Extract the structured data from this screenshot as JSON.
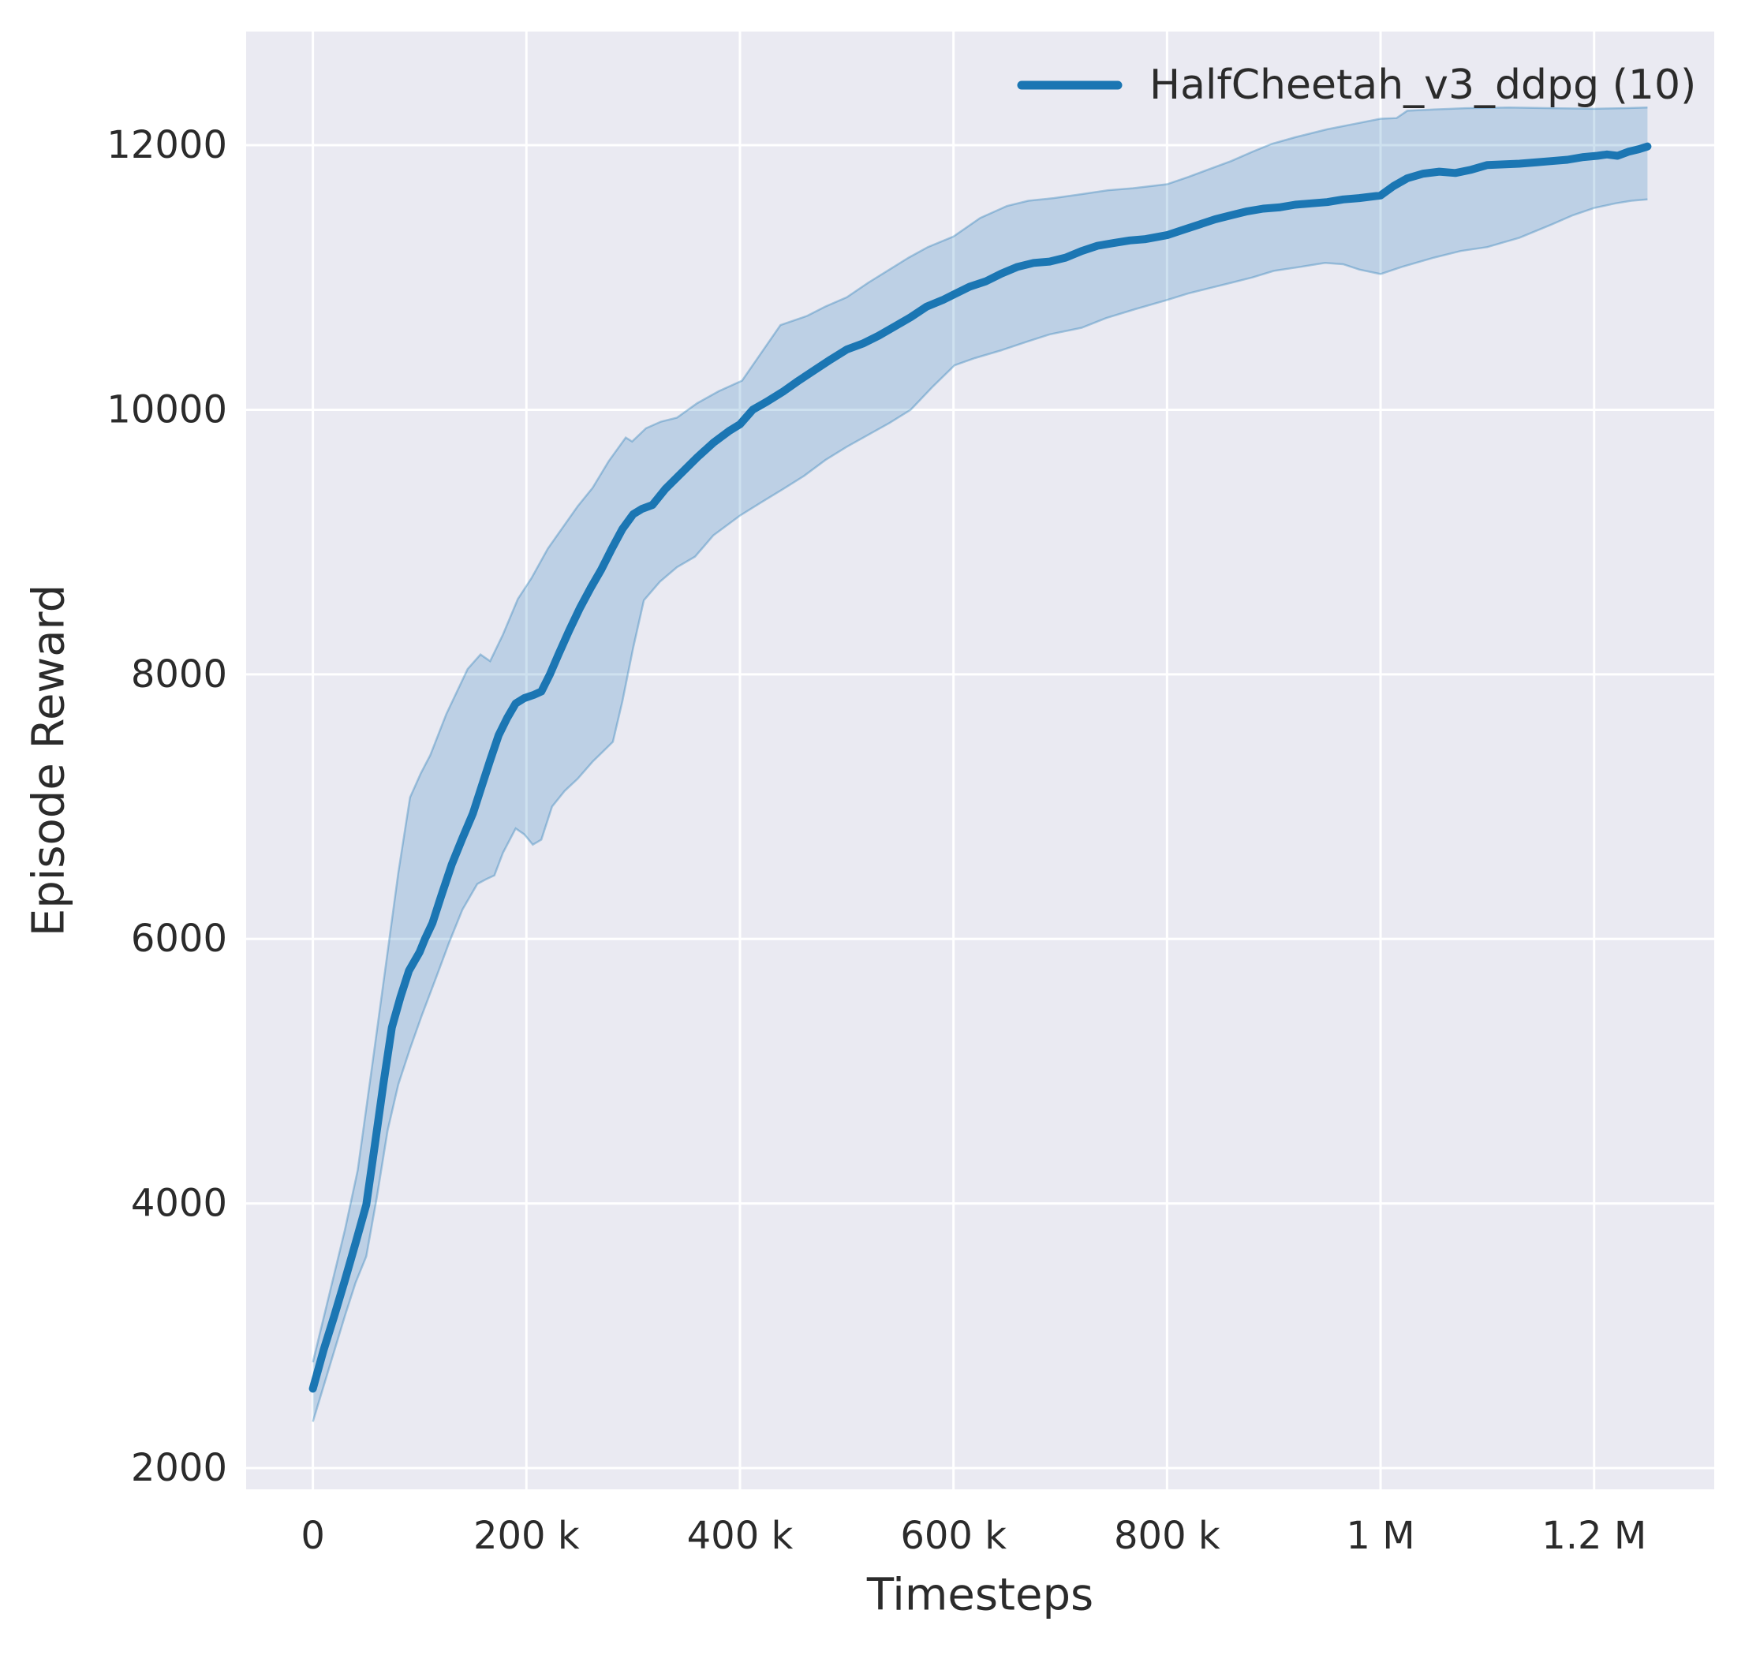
{
  "figure": {
    "background": "#ffffff",
    "axes_background": "#eaeaf2",
    "grid_color": "#ffffff",
    "text_color": "#2b2b2b"
  },
  "legend": {
    "label": "HalfCheetah_v3_ddpg (10)",
    "swatch_color": "#1b76b3"
  },
  "chart_data": {
    "type": "line",
    "title": "",
    "xlabel": "Timesteps",
    "ylabel": "Episode Reward",
    "grid": true,
    "legend_position": "upper right",
    "xlim": [
      -62500,
      1312500
    ],
    "ylim": [
      1839,
      12859
    ],
    "x_ticks": [
      {
        "v": 0,
        "label": "0"
      },
      {
        "v": 200000,
        "label": "200 k"
      },
      {
        "v": 400000,
        "label": "400 k"
      },
      {
        "v": 600000,
        "label": "600 k"
      },
      {
        "v": 800000,
        "label": "800 k"
      },
      {
        "v": 1000000,
        "label": "1 M"
      },
      {
        "v": 1200000,
        "label": "1.2 M"
      }
    ],
    "y_ticks": [
      {
        "v": 2000,
        "label": "2000"
      },
      {
        "v": 4000,
        "label": "4000"
      },
      {
        "v": 6000,
        "label": "6000"
      },
      {
        "v": 8000,
        "label": "8000"
      },
      {
        "v": 10000,
        "label": "10000"
      },
      {
        "v": 12000,
        "label": "12000"
      }
    ],
    "series": [
      {
        "name": "HalfCheetah_v3_ddpg (10)",
        "color": "#1b76b3",
        "band_fill": "rgba(31,119,180,0.22)",
        "band_edge": "rgba(31,119,180,0.35)",
        "mean": [
          [
            0,
            2600
          ],
          [
            10000,
            2890
          ],
          [
            20000,
            3150
          ],
          [
            30000,
            3420
          ],
          [
            40000,
            3700
          ],
          [
            50000,
            3990
          ],
          [
            58000,
            4440
          ],
          [
            66000,
            4900
          ],
          [
            74000,
            5330
          ],
          [
            82000,
            5560
          ],
          [
            90000,
            5760
          ],
          [
            100000,
            5900
          ],
          [
            105000,
            6000
          ],
          [
            112000,
            6120
          ],
          [
            120000,
            6320
          ],
          [
            130000,
            6560
          ],
          [
            140000,
            6760
          ],
          [
            150000,
            6950
          ],
          [
            158000,
            7150
          ],
          [
            166000,
            7350
          ],
          [
            174000,
            7540
          ],
          [
            182000,
            7670
          ],
          [
            190000,
            7780
          ],
          [
            198000,
            7820
          ],
          [
            207000,
            7845
          ],
          [
            214000,
            7870
          ],
          [
            222000,
            8000
          ],
          [
            230000,
            8150
          ],
          [
            240000,
            8330
          ],
          [
            250000,
            8500
          ],
          [
            260000,
            8650
          ],
          [
            270000,
            8790
          ],
          [
            280000,
            8950
          ],
          [
            290000,
            9100
          ],
          [
            300000,
            9210
          ],
          [
            308000,
            9250
          ],
          [
            318000,
            9280
          ],
          [
            330000,
            9400
          ],
          [
            340000,
            9480
          ],
          [
            350000,
            9560
          ],
          [
            360000,
            9640
          ],
          [
            375000,
            9750
          ],
          [
            390000,
            9840
          ],
          [
            400000,
            9890
          ],
          [
            412000,
            10000
          ],
          [
            425000,
            10060
          ],
          [
            440000,
            10135
          ],
          [
            455000,
            10220
          ],
          [
            470000,
            10300
          ],
          [
            485000,
            10380
          ],
          [
            500000,
            10455
          ],
          [
            515000,
            10500
          ],
          [
            530000,
            10560
          ],
          [
            545000,
            10630
          ],
          [
            560000,
            10700
          ],
          [
            575000,
            10780
          ],
          [
            590000,
            10830
          ],
          [
            600000,
            10870
          ],
          [
            615000,
            10930
          ],
          [
            630000,
            10970
          ],
          [
            645000,
            11030
          ],
          [
            660000,
            11080
          ],
          [
            675000,
            11110
          ],
          [
            690000,
            11120
          ],
          [
            705000,
            11150
          ],
          [
            720000,
            11200
          ],
          [
            735000,
            11240
          ],
          [
            750000,
            11260
          ],
          [
            765000,
            11280
          ],
          [
            780000,
            11290
          ],
          [
            800000,
            11320
          ],
          [
            815000,
            11360
          ],
          [
            830000,
            11400
          ],
          [
            845000,
            11440
          ],
          [
            860000,
            11470
          ],
          [
            875000,
            11500
          ],
          [
            890000,
            11520
          ],
          [
            905000,
            11530
          ],
          [
            920000,
            11550
          ],
          [
            935000,
            11560
          ],
          [
            950000,
            11570
          ],
          [
            965000,
            11590
          ],
          [
            980000,
            11600
          ],
          [
            1000000,
            11620
          ],
          [
            1012000,
            11690
          ],
          [
            1025000,
            11750
          ],
          [
            1040000,
            11785
          ],
          [
            1055000,
            11800
          ],
          [
            1070000,
            11790
          ],
          [
            1085000,
            11815
          ],
          [
            1100000,
            11850
          ],
          [
            1115000,
            11855
          ],
          [
            1130000,
            11860
          ],
          [
            1145000,
            11870
          ],
          [
            1160000,
            11880
          ],
          [
            1175000,
            11890
          ],
          [
            1190000,
            11910
          ],
          [
            1203000,
            11920
          ],
          [
            1212000,
            11930
          ],
          [
            1222000,
            11920
          ],
          [
            1232000,
            11950
          ],
          [
            1242000,
            11970
          ],
          [
            1250000,
            11990
          ]
        ],
        "lower": [
          [
            0,
            2350
          ],
          [
            15000,
            2750
          ],
          [
            30000,
            3150
          ],
          [
            40000,
            3400
          ],
          [
            50000,
            3600
          ],
          [
            60000,
            4050
          ],
          [
            70000,
            4550
          ],
          [
            80000,
            4900
          ],
          [
            91000,
            5170
          ],
          [
            102000,
            5420
          ],
          [
            116000,
            5720
          ],
          [
            128000,
            5980
          ],
          [
            140000,
            6220
          ],
          [
            154000,
            6415
          ],
          [
            162000,
            6450
          ],
          [
            170000,
            6480
          ],
          [
            178000,
            6650
          ],
          [
            190000,
            6835
          ],
          [
            198000,
            6790
          ],
          [
            206000,
            6712
          ],
          [
            214000,
            6750
          ],
          [
            224000,
            7000
          ],
          [
            236000,
            7120
          ],
          [
            248000,
            7210
          ],
          [
            262000,
            7340
          ],
          [
            281000,
            7490
          ],
          [
            290000,
            7800
          ],
          [
            300000,
            8200
          ],
          [
            310000,
            8560
          ],
          [
            325000,
            8700
          ],
          [
            341000,
            8810
          ],
          [
            358000,
            8890
          ],
          [
            375000,
            9050
          ],
          [
            400000,
            9200
          ],
          [
            420000,
            9300
          ],
          [
            441000,
            9404
          ],
          [
            460000,
            9500
          ],
          [
            480000,
            9620
          ],
          [
            500000,
            9720
          ],
          [
            520000,
            9810
          ],
          [
            540000,
            9900
          ],
          [
            560000,
            10000
          ],
          [
            580000,
            10170
          ],
          [
            601000,
            10336
          ],
          [
            620000,
            10390
          ],
          [
            645000,
            10450
          ],
          [
            669000,
            10515
          ],
          [
            690000,
            10570
          ],
          [
            720000,
            10620
          ],
          [
            743000,
            10693
          ],
          [
            770000,
            10760
          ],
          [
            800000,
            10830
          ],
          [
            820000,
            10880
          ],
          [
            840000,
            10920
          ],
          [
            860000,
            10960
          ],
          [
            880000,
            11000
          ],
          [
            900000,
            11050
          ],
          [
            925000,
            11080
          ],
          [
            948000,
            11110
          ],
          [
            965000,
            11100
          ],
          [
            980000,
            11060
          ],
          [
            1000000,
            11026
          ],
          [
            1020000,
            11080
          ],
          [
            1050000,
            11150
          ],
          [
            1075000,
            11200
          ],
          [
            1100000,
            11230
          ],
          [
            1130000,
            11300
          ],
          [
            1160000,
            11400
          ],
          [
            1180000,
            11470
          ],
          [
            1200000,
            11525
          ],
          [
            1220000,
            11560
          ],
          [
            1235000,
            11580
          ],
          [
            1250000,
            11590
          ]
        ],
        "upper": [
          [
            0,
            2800
          ],
          [
            15000,
            3300
          ],
          [
            30000,
            3800
          ],
          [
            42000,
            4250
          ],
          [
            56000,
            5070
          ],
          [
            70000,
            5900
          ],
          [
            80000,
            6500
          ],
          [
            91000,
            7070
          ],
          [
            101000,
            7250
          ],
          [
            110000,
            7390
          ],
          [
            125000,
            7700
          ],
          [
            145000,
            8040
          ],
          [
            157000,
            8150
          ],
          [
            166000,
            8100
          ],
          [
            178000,
            8300
          ],
          [
            192000,
            8570
          ],
          [
            205000,
            8730
          ],
          [
            220000,
            8950
          ],
          [
            234000,
            9110
          ],
          [
            248000,
            9270
          ],
          [
            262000,
            9410
          ],
          [
            277000,
            9610
          ],
          [
            293000,
            9790
          ],
          [
            299000,
            9760
          ],
          [
            312000,
            9860
          ],
          [
            326000,
            9910
          ],
          [
            341000,
            9940
          ],
          [
            360000,
            10050
          ],
          [
            380000,
            10140
          ],
          [
            402000,
            10220
          ],
          [
            420000,
            10430
          ],
          [
            438000,
            10640
          ],
          [
            463000,
            10710
          ],
          [
            480000,
            10780
          ],
          [
            500000,
            10850
          ],
          [
            520000,
            10960
          ],
          [
            540000,
            11060
          ],
          [
            558000,
            11150
          ],
          [
            576000,
            11230
          ],
          [
            600000,
            11310
          ],
          [
            625000,
            11450
          ],
          [
            650000,
            11540
          ],
          [
            670000,
            11580
          ],
          [
            694000,
            11600
          ],
          [
            720000,
            11630
          ],
          [
            745000,
            11660
          ],
          [
            768000,
            11675
          ],
          [
            800000,
            11705
          ],
          [
            820000,
            11760
          ],
          [
            840000,
            11820
          ],
          [
            860000,
            11880
          ],
          [
            880000,
            11950
          ],
          [
            898000,
            12010
          ],
          [
            920000,
            12060
          ],
          [
            950000,
            12120
          ],
          [
            975000,
            12160
          ],
          [
            1000000,
            12200
          ],
          [
            1015000,
            12205
          ],
          [
            1025000,
            12260
          ],
          [
            1050000,
            12270
          ],
          [
            1080000,
            12280
          ],
          [
            1120000,
            12285
          ],
          [
            1160000,
            12280
          ],
          [
            1200000,
            12275
          ],
          [
            1228000,
            12280
          ],
          [
            1250000,
            12285
          ]
        ]
      }
    ]
  }
}
